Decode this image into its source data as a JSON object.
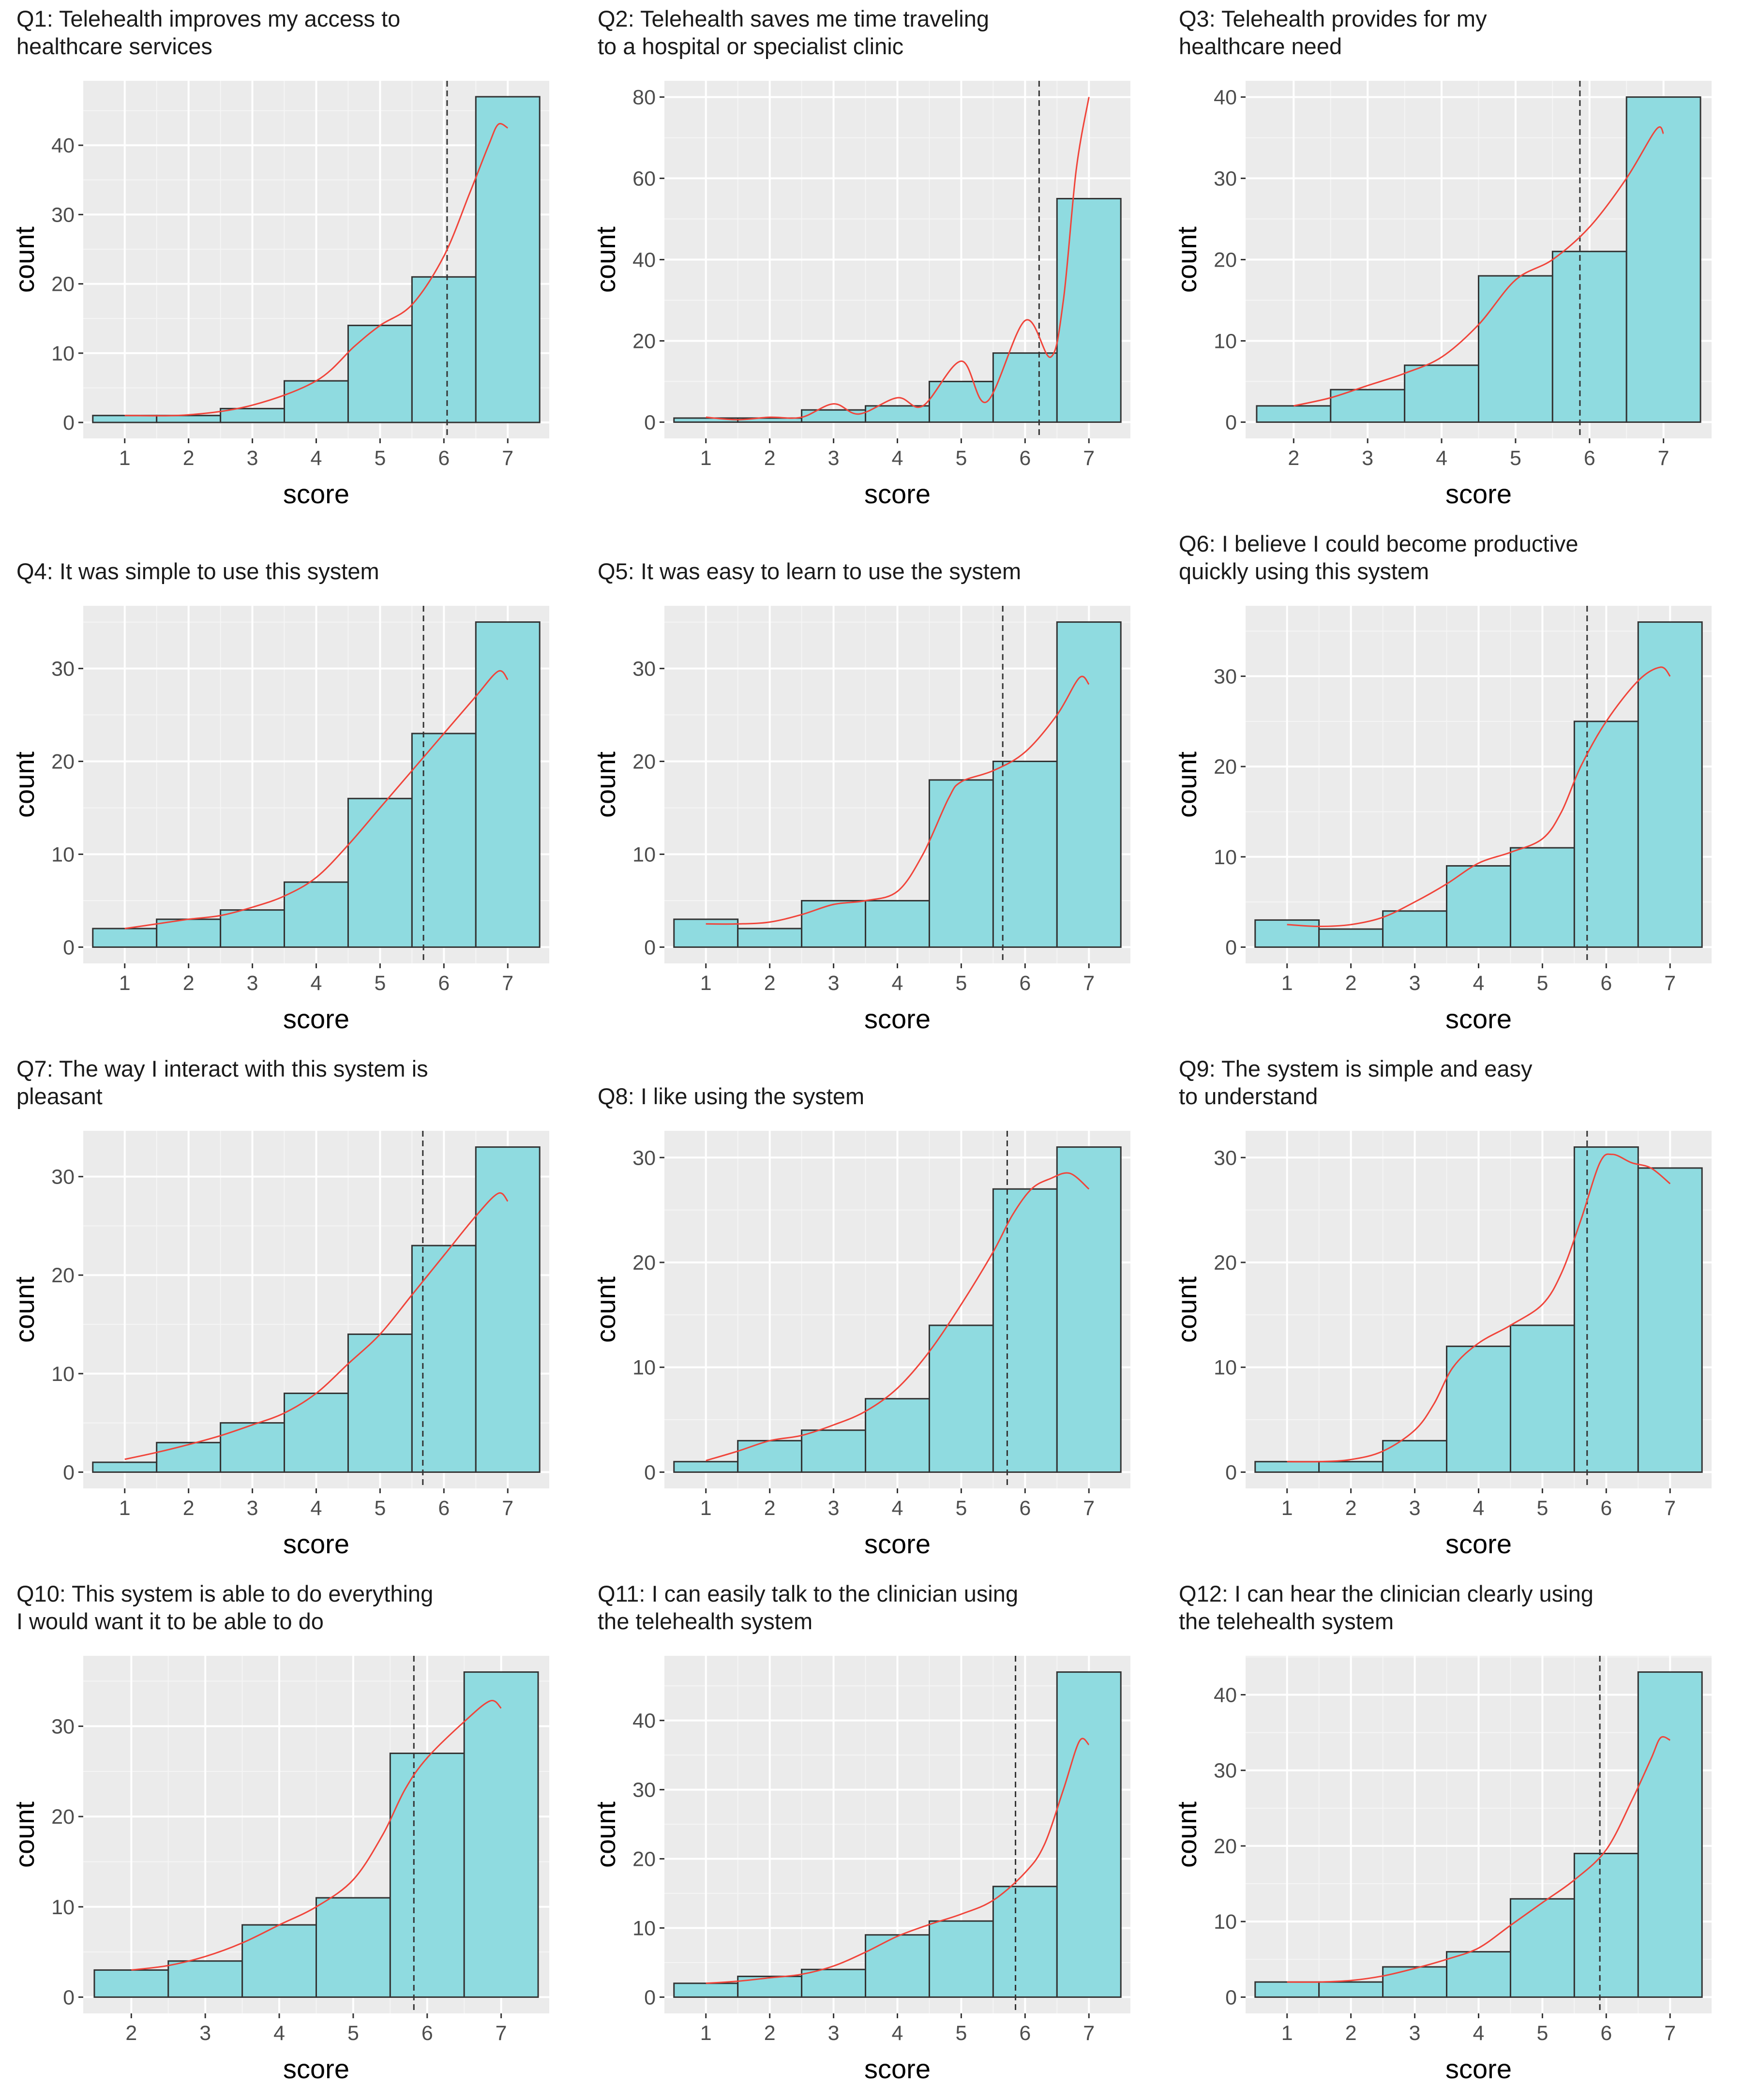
{
  "colors": {
    "panel_bg": "#ebebeb",
    "grid_major": "#ffffff",
    "bar_fill": "#8fdbe0",
    "bar_stroke": "#333333",
    "density_line": "#f0443a",
    "mean_line": "#333333"
  },
  "chart_data": [
    {
      "type": "bar",
      "title": [
        "Q1: Telehealth improves my access to",
        " healthcare services"
      ],
      "xlabel": "score",
      "ylabel": "count",
      "categories": [
        1,
        2,
        3,
        4,
        5,
        6,
        7
      ],
      "values": [
        1,
        1,
        2,
        6,
        14,
        21,
        47
      ],
      "x_ticks": [
        1,
        2,
        3,
        4,
        5,
        6,
        7
      ],
      "y_ticks": [
        0,
        10,
        20,
        30,
        40
      ],
      "xlim": [
        0.35,
        7.65
      ],
      "ylim": [
        -2.3,
        49.3
      ],
      "mean": 6.05,
      "density": [
        [
          1,
          1
        ],
        [
          2,
          1.1
        ],
        [
          3,
          2.5
        ],
        [
          4,
          6
        ],
        [
          4.6,
          11
        ],
        [
          5,
          14
        ],
        [
          5.5,
          17
        ],
        [
          6,
          24
        ],
        [
          6.4,
          33
        ],
        [
          6.7,
          40
        ],
        [
          6.85,
          43
        ],
        [
          7,
          42.5
        ]
      ]
    },
    {
      "type": "bar",
      "title": [
        "Q2: Telehealth saves me time traveling",
        " to a hospital or specialist clinic"
      ],
      "xlabel": "score",
      "ylabel": "count",
      "categories": [
        1,
        2,
        3,
        4,
        5,
        6,
        7
      ],
      "values": [
        1,
        1,
        3,
        4,
        10,
        17,
        55
      ],
      "x_ticks": [
        1,
        2,
        3,
        4,
        5,
        6,
        7
      ],
      "y_ticks": [
        0,
        20,
        40,
        60,
        80
      ],
      "xlim": [
        0.35,
        7.65
      ],
      "ylim": [
        -4,
        84
      ],
      "mean": 6.22,
      "density": [
        [
          1,
          1.2
        ],
        [
          1.5,
          0.6
        ],
        [
          2,
          1.2
        ],
        [
          2.5,
          1.2
        ],
        [
          3,
          4.5
        ],
        [
          3.4,
          2
        ],
        [
          4,
          6
        ],
        [
          4.4,
          4
        ],
        [
          5,
          15
        ],
        [
          5.4,
          5
        ],
        [
          6,
          25
        ],
        [
          6.4,
          16
        ],
        [
          6.6,
          30
        ],
        [
          6.8,
          62
        ],
        [
          7,
          80
        ]
      ]
    },
    {
      "type": "bar",
      "title": [
        "Q3: Telehealth provides for my",
        " healthcare need"
      ],
      "xlabel": "score",
      "ylabel": "count",
      "categories": [
        2,
        3,
        4,
        5,
        6,
        7
      ],
      "values": [
        2,
        4,
        7,
        18,
        21,
        40
      ],
      "x_ticks": [
        2,
        3,
        4,
        5,
        6,
        7
      ],
      "y_ticks": [
        0,
        10,
        20,
        30,
        40
      ],
      "xlim": [
        1.35,
        7.65
      ],
      "ylim": [
        -2,
        42
      ],
      "mean": 5.87,
      "density": [
        [
          2,
          2
        ],
        [
          2.5,
          3
        ],
        [
          3,
          4.5
        ],
        [
          3.5,
          6
        ],
        [
          4,
          8
        ],
        [
          4.5,
          12
        ],
        [
          5,
          17.5
        ],
        [
          5.5,
          20
        ],
        [
          6,
          24
        ],
        [
          6.5,
          30
        ],
        [
          6.9,
          36
        ],
        [
          7,
          35.5
        ]
      ]
    },
    {
      "type": "bar",
      "title": [
        "Q4: It was simple to use this system"
      ],
      "xlabel": "score",
      "ylabel": "count",
      "categories": [
        1,
        2,
        3,
        4,
        5,
        6,
        7
      ],
      "values": [
        2,
        3,
        4,
        7,
        16,
        23,
        35
      ],
      "x_ticks": [
        1,
        2,
        3,
        4,
        5,
        6,
        7
      ],
      "y_ticks": [
        0,
        10,
        20,
        30
      ],
      "xlim": [
        0.35,
        7.65
      ],
      "ylim": [
        -1.75,
        36.75
      ],
      "mean": 5.68,
      "density": [
        [
          1,
          2
        ],
        [
          1.5,
          2.5
        ],
        [
          2,
          3
        ],
        [
          2.5,
          3.4
        ],
        [
          3,
          4.3
        ],
        [
          3.5,
          5.5
        ],
        [
          4,
          7.5
        ],
        [
          4.5,
          11
        ],
        [
          5,
          15
        ],
        [
          5.5,
          19
        ],
        [
          6,
          23
        ],
        [
          6.5,
          27
        ],
        [
          6.85,
          29.7
        ],
        [
          7,
          28.8
        ]
      ]
    },
    {
      "type": "bar",
      "title": [
        "Q5: It was easy to learn to use the system"
      ],
      "xlabel": "score",
      "ylabel": "count",
      "categories": [
        1,
        2,
        3,
        4,
        5,
        6,
        7
      ],
      "values": [
        3,
        2,
        5,
        5,
        18,
        20,
        35
      ],
      "x_ticks": [
        1,
        2,
        3,
        4,
        5,
        6,
        7
      ],
      "y_ticks": [
        0,
        10,
        20,
        30
      ],
      "xlim": [
        0.35,
        7.65
      ],
      "ylim": [
        -1.75,
        36.75
      ],
      "mean": 5.65,
      "density": [
        [
          1,
          2.5
        ],
        [
          1.5,
          2.5
        ],
        [
          2,
          2.7
        ],
        [
          2.5,
          3.5
        ],
        [
          3,
          4.6
        ],
        [
          3.5,
          5
        ],
        [
          4,
          6
        ],
        [
          4.4,
          10
        ],
        [
          4.8,
          16
        ],
        [
          5,
          17.8
        ],
        [
          5.5,
          19
        ],
        [
          6,
          21
        ],
        [
          6.5,
          25
        ],
        [
          6.85,
          29
        ],
        [
          7,
          28.3
        ]
      ]
    },
    {
      "type": "bar",
      "title": [
        "Q6: I believe I could become productive",
        " quickly using this system"
      ],
      "xlabel": "score",
      "ylabel": "count",
      "categories": [
        1,
        2,
        3,
        4,
        5,
        6,
        7
      ],
      "values": [
        3,
        2,
        4,
        9,
        11,
        25,
        36
      ],
      "x_ticks": [
        1,
        2,
        3,
        4,
        5,
        6,
        7
      ],
      "y_ticks": [
        0,
        10,
        20,
        30
      ],
      "xlim": [
        0.35,
        7.65
      ],
      "ylim": [
        -1.8,
        37.8
      ],
      "mean": 5.7,
      "density": [
        [
          1,
          2.5
        ],
        [
          1.5,
          2.3
        ],
        [
          2,
          2.5
        ],
        [
          2.5,
          3.3
        ],
        [
          3,
          5
        ],
        [
          3.5,
          7
        ],
        [
          4,
          9.3
        ],
        [
          4.5,
          10.5
        ],
        [
          5,
          12
        ],
        [
          5.3,
          15
        ],
        [
          5.6,
          20
        ],
        [
          6,
          25
        ],
        [
          6.5,
          29.5
        ],
        [
          6.85,
          31
        ],
        [
          7,
          30
        ]
      ]
    },
    {
      "type": "bar",
      "title": [
        "Q7: The way I interact with this system is",
        " pleasant"
      ],
      "xlabel": "score",
      "ylabel": "count",
      "categories": [
        1,
        2,
        3,
        4,
        5,
        6,
        7
      ],
      "values": [
        1,
        3,
        5,
        8,
        14,
        23,
        33
      ],
      "x_ticks": [
        1,
        2,
        3,
        4,
        5,
        6,
        7
      ],
      "y_ticks": [
        0,
        10,
        20,
        30
      ],
      "xlim": [
        0.35,
        7.65
      ],
      "ylim": [
        -1.65,
        34.65
      ],
      "mean": 5.67,
      "density": [
        [
          1,
          1.3
        ],
        [
          1.5,
          2
        ],
        [
          2,
          2.8
        ],
        [
          2.5,
          3.7
        ],
        [
          3,
          4.8
        ],
        [
          3.5,
          6
        ],
        [
          4,
          8
        ],
        [
          4.5,
          11
        ],
        [
          5,
          14
        ],
        [
          5.5,
          18
        ],
        [
          6,
          22
        ],
        [
          6.5,
          26
        ],
        [
          6.85,
          28.3
        ],
        [
          7,
          27.5
        ]
      ]
    },
    {
      "type": "bar",
      "title": [
        "Q8: I like using the system"
      ],
      "xlabel": "score",
      "ylabel": "count",
      "categories": [
        1,
        2,
        3,
        4,
        5,
        6,
        7
      ],
      "values": [
        1,
        3,
        4,
        7,
        14,
        27,
        31
      ],
      "x_ticks": [
        1,
        2,
        3,
        4,
        5,
        6,
        7
      ],
      "y_ticks": [
        0,
        10,
        20,
        30
      ],
      "xlim": [
        0.35,
        7.65
      ],
      "ylim": [
        -1.55,
        32.55
      ],
      "mean": 5.72,
      "density": [
        [
          1,
          1.1
        ],
        [
          1.5,
          2
        ],
        [
          2,
          3
        ],
        [
          2.5,
          3.5
        ],
        [
          3,
          4.5
        ],
        [
          3.5,
          5.8
        ],
        [
          4,
          8
        ],
        [
          4.5,
          11.5
        ],
        [
          5,
          16
        ],
        [
          5.5,
          21
        ],
        [
          5.8,
          24.5
        ],
        [
          6.1,
          27
        ],
        [
          6.4,
          28
        ],
        [
          6.7,
          28.5
        ],
        [
          7,
          27
        ]
      ]
    },
    {
      "type": "bar",
      "title": [
        "Q9: The system is simple and easy",
        " to understand"
      ],
      "xlabel": "score",
      "ylabel": "count",
      "categories": [
        1,
        2,
        3,
        4,
        5,
        6,
        7
      ],
      "values": [
        1,
        1,
        3,
        12,
        14,
        31,
        29
      ],
      "x_ticks": [
        1,
        2,
        3,
        4,
        5,
        6,
        7
      ],
      "y_ticks": [
        0,
        10,
        20,
        30
      ],
      "xlim": [
        0.35,
        7.65
      ],
      "ylim": [
        -1.55,
        32.55
      ],
      "mean": 5.7,
      "density": [
        [
          1,
          1
        ],
        [
          1.5,
          1
        ],
        [
          2,
          1.2
        ],
        [
          2.5,
          2
        ],
        [
          3,
          4
        ],
        [
          3.3,
          6.5
        ],
        [
          3.6,
          10
        ],
        [
          4,
          12.3
        ],
        [
          4.5,
          14
        ],
        [
          5,
          16
        ],
        [
          5.3,
          19
        ],
        [
          5.6,
          24
        ],
        [
          5.9,
          29.5
        ],
        [
          6.1,
          30.3
        ],
        [
          6.4,
          29.5
        ],
        [
          6.7,
          29
        ],
        [
          7,
          27.5
        ]
      ]
    },
    {
      "type": "bar",
      "title": [
        "Q10: This system is able to do everything",
        " I would want it to be able to do"
      ],
      "xlabel": "score",
      "ylabel": "count",
      "categories": [
        2,
        3,
        4,
        5,
        6,
        7
      ],
      "values": [
        3,
        4,
        8,
        11,
        27,
        36
      ],
      "x_ticks": [
        2,
        3,
        4,
        5,
        6,
        7
      ],
      "y_ticks": [
        0,
        10,
        20,
        30
      ],
      "xlim": [
        1.35,
        7.65
      ],
      "ylim": [
        -1.8,
        37.8
      ],
      "mean": 5.82,
      "density": [
        [
          2,
          3
        ],
        [
          2.5,
          3.5
        ],
        [
          3,
          4.5
        ],
        [
          3.5,
          6
        ],
        [
          4,
          8
        ],
        [
          4.5,
          10
        ],
        [
          5,
          13
        ],
        [
          5.4,
          18
        ],
        [
          5.7,
          23
        ],
        [
          6,
          26.5
        ],
        [
          6.5,
          30.5
        ],
        [
          6.85,
          32.8
        ],
        [
          7,
          32
        ]
      ]
    },
    {
      "type": "bar",
      "title": [
        "Q11: I can easily talk to the clinician using",
        " the telehealth system"
      ],
      "xlabel": "score",
      "ylabel": "count",
      "categories": [
        1,
        2,
        3,
        4,
        5,
        6,
        7
      ],
      "values": [
        2,
        3,
        4,
        9,
        11,
        16,
        47
      ],
      "x_ticks": [
        1,
        2,
        3,
        4,
        5,
        6,
        7
      ],
      "y_ticks": [
        0,
        10,
        20,
        30,
        40
      ],
      "xlim": [
        0.35,
        7.65
      ],
      "ylim": [
        -2.35,
        49.35
      ],
      "mean": 5.85,
      "density": [
        [
          1,
          2
        ],
        [
          1.5,
          2.3
        ],
        [
          2,
          2.8
        ],
        [
          2.5,
          3.3
        ],
        [
          3,
          4.5
        ],
        [
          3.5,
          6.5
        ],
        [
          4,
          8.8
        ],
        [
          4.5,
          10.5
        ],
        [
          5,
          12
        ],
        [
          5.5,
          14
        ],
        [
          6,
          18
        ],
        [
          6.3,
          22
        ],
        [
          6.6,
          30
        ],
        [
          6.85,
          37
        ],
        [
          7,
          36.5
        ]
      ]
    },
    {
      "type": "bar",
      "title": [
        "Q12: I can hear the clinician clearly using",
        " the telehealth system"
      ],
      "xlabel": "score",
      "ylabel": "count",
      "categories": [
        1,
        2,
        3,
        4,
        5,
        6,
        7
      ],
      "values": [
        2,
        2,
        4,
        6,
        13,
        19,
        43
      ],
      "x_ticks": [
        1,
        2,
        3,
        4,
        5,
        6,
        7
      ],
      "y_ticks": [
        0,
        10,
        20,
        30,
        40
      ],
      "xlim": [
        0.35,
        7.65
      ],
      "ylim": [
        -2.15,
        45.15
      ],
      "mean": 5.9,
      "density": [
        [
          1,
          2
        ],
        [
          1.5,
          2
        ],
        [
          2,
          2.2
        ],
        [
          2.5,
          2.8
        ],
        [
          3,
          3.8
        ],
        [
          3.5,
          5
        ],
        [
          4,
          6.5
        ],
        [
          4.5,
          9.5
        ],
        [
          5,
          12.5
        ],
        [
          5.5,
          15.5
        ],
        [
          6,
          19.5
        ],
        [
          6.4,
          26
        ],
        [
          6.7,
          31.5
        ],
        [
          6.85,
          34.3
        ],
        [
          7,
          34
        ]
      ]
    }
  ]
}
